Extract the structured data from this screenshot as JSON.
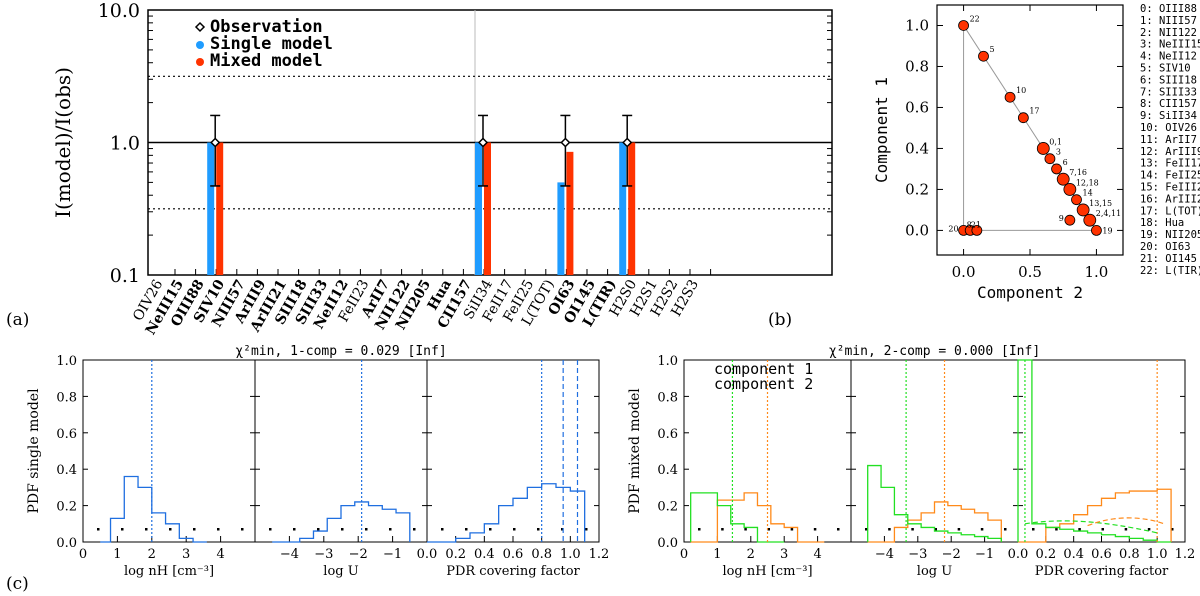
{
  "panel_labels": [
    "(a)",
    "(b)",
    "(c)"
  ],
  "chart_data": [
    {
      "id": "a",
      "type": "bar",
      "ylabel": "I(model)/I(obs)",
      "y_scale": "log",
      "ylim": [
        0.1,
        10.0
      ],
      "yticks": [
        "0.1",
        "1.0",
        "10.0"
      ],
      "categories": [
        "OIV26",
        "NeIII15",
        "OIII88",
        "SIV10",
        "NIII57",
        "ArIII9",
        "ArIII21",
        "SIII18",
        "SIII33",
        "NeII12",
        "FeII23",
        "ArII7",
        "NII122",
        "NII205",
        "Hua",
        "CII157",
        "SiII34",
        "FeII17",
        "FeII25",
        "L(TOT)",
        "OI63",
        "OI145",
        "L(TIR)",
        "H2S0",
        "H2S1",
        "H2S2",
        "H2S3"
      ],
      "bold_categories": [
        "NeIII15",
        "OIII88",
        "SIV10",
        "NIII57",
        "ArIII9",
        "ArIII21",
        "SIII18",
        "SIII33",
        "NeII12",
        "ArII7",
        "NII122",
        "NII205",
        "Hua",
        "CII157",
        "OI63",
        "OI145",
        "L(TIR)"
      ],
      "series": [
        {
          "name": "Observation",
          "type": "point",
          "values": {
            "OIII88": 1.0,
            "CII157": 1.0,
            "L(TOT)": 1.0,
            "L(TIR)": 1.0
          },
          "error_low": 0.47,
          "error_high": 1.6
        },
        {
          "name": "Single model",
          "color": "#1f9cff",
          "values": {
            "OIII88": 1.0,
            "CII157": 1.0,
            "L(TOT)": 0.5,
            "L(TIR)": 1.0
          }
        },
        {
          "name": "Mixed model",
          "color": "#ff3300",
          "values": {
            "OIII88": 1.0,
            "CII157": 1.0,
            "L(TOT)": 0.85,
            "L(TIR)": 1.0
          }
        }
      ],
      "reference_lines": [
        1.0,
        3.16,
        0.316
      ],
      "legend_placement": "top-left"
    },
    {
      "id": "b",
      "type": "scatter",
      "xlabel": "Component 2",
      "ylabel": "Component 1",
      "xlim": [
        -0.2,
        1.2
      ],
      "ylim": [
        -0.12,
        1.1
      ],
      "xticks": [
        "0.0",
        "0.5",
        "1.0"
      ],
      "yticks": [
        "0.0",
        "0.2",
        "0.4",
        "0.6",
        "0.8",
        "1.0"
      ],
      "points": [
        {
          "label": "22",
          "x": 0.0,
          "y": 1.0
        },
        {
          "label": "5",
          "x": 0.15,
          "y": 0.85
        },
        {
          "label": "10",
          "x": 0.35,
          "y": 0.65
        },
        {
          "label": "17",
          "x": 0.45,
          "y": 0.55
        },
        {
          "label": "0,1",
          "x": 0.6,
          "y": 0.4
        },
        {
          "label": "3",
          "x": 0.65,
          "y": 0.35
        },
        {
          "label": "6",
          "x": 0.7,
          "y": 0.3
        },
        {
          "label": "7,16",
          "x": 0.75,
          "y": 0.25
        },
        {
          "label": "12,18",
          "x": 0.8,
          "y": 0.2
        },
        {
          "label": "14",
          "x": 0.85,
          "y": 0.15
        },
        {
          "label": "13,15",
          "x": 0.9,
          "y": 0.1
        },
        {
          "label": "2,4,11",
          "x": 0.95,
          "y": 0.05
        },
        {
          "label": "9",
          "x": 0.8,
          "y": 0.05
        },
        {
          "label": "19",
          "x": 1.0,
          "y": 0.0
        },
        {
          "label": "20",
          "x": 0.0,
          "y": 0.0
        },
        {
          "label": "8",
          "x": 0.05,
          "y": 0.0
        },
        {
          "label": "21",
          "x": 0.1,
          "y": 0.0
        }
      ],
      "legend_entries": [
        "0: OIII88",
        "1: NIII57",
        "2: NII122",
        "3: NeIII15",
        "4: NeII12",
        "5: SIV10",
        "6: SIII18",
        "7: SIII33",
        "8: CII157",
        "9: SiII34",
        "10: OIV26",
        "11:   ArII7",
        "12: ArIII9",
        "13: FeII17",
        "14: FeII25",
        "15: FeIII23",
        "16: ArIII21",
        "17: L(TOT)",
        "18:   Hua",
        "19: NII205",
        "20: OI63",
        "21: OI145",
        "22: L(TIR)"
      ]
    },
    {
      "id": "c",
      "type": "area",
      "group_titles": [
        "χ²min, 1-comp = 0.029 [Inf]",
        "χ²min, 2-comp = 0.000 [Inf]"
      ],
      "ylabels": [
        "PDF single model",
        "PDF mixed model"
      ],
      "ylim": [
        0,
        1.0
      ],
      "yticks": [
        "0.0",
        "0.2",
        "0.4",
        "0.6",
        "0.8",
        "1.0"
      ],
      "panels": [
        {
          "xlabel": "log nH [cm⁻³]",
          "xlim": [
            0,
            5
          ],
          "xticks": [
            "0",
            "1",
            "2",
            "3",
            "4"
          ]
        },
        {
          "xlabel": "log U",
          "xlim": [
            -5,
            0
          ],
          "xticks": [
            "−4",
            "−3",
            "−2",
            "−1"
          ]
        },
        {
          "xlabel": "PDR covering factor",
          "xlim": [
            0,
            1.2
          ],
          "xticks": [
            "0.0",
            "0.2",
            "0.4",
            "0.6",
            "0.8",
            "1.0",
            "1.2"
          ]
        }
      ],
      "series_labels": [
        "component 1",
        "component 2"
      ],
      "colors": {
        "single": "#1f6fe0",
        "component1": "#ff8a1a",
        "component2": "#22e022"
      },
      "single": {
        "nh": {
          "edges": [
            0.5,
            0.8,
            1.2,
            1.6,
            2.0,
            2.4,
            2.8,
            3.2,
            3.6
          ],
          "values": [
            0.0,
            0.13,
            0.36,
            0.3,
            0.16,
            0.1,
            0.02,
            0.0
          ],
          "marker": 2.0
        },
        "u": {
          "edges": [
            -4.5,
            -4.1,
            -3.7,
            -3.3,
            -2.9,
            -2.5,
            -2.1,
            -1.7,
            -1.3,
            -0.9,
            -0.5
          ],
          "values": [
            0.0,
            0.0,
            0.02,
            0.06,
            0.13,
            0.2,
            0.22,
            0.2,
            0.18,
            0.16
          ],
          "marker": -1.9
        },
        "pdr": {
          "edges": [
            0.0,
            0.1,
            0.2,
            0.3,
            0.4,
            0.5,
            0.6,
            0.7,
            0.8,
            0.9,
            1.0,
            1.1
          ],
          "values": [
            0.0,
            0.0,
            0.02,
            0.05,
            0.1,
            0.2,
            0.24,
            0.3,
            0.32,
            0.3,
            0.28
          ],
          "markers": [
            0.8,
            0.95,
            1.05
          ]
        }
      },
      "mixed": {
        "nh_c1": {
          "edges": [
            0.2,
            0.6,
            1.0,
            1.4,
            1.8,
            2.2,
            2.6,
            3.0,
            3.4,
            3.8,
            4.2
          ],
          "values": [
            0.0,
            0.0,
            0.23,
            0.23,
            0.27,
            0.2,
            0.1,
            0.08,
            0.0,
            0.0
          ],
          "marker": 2.5
        },
        "nh_c2": {
          "edges": [
            0.2,
            0.6,
            1.0,
            1.4,
            1.8,
            2.2,
            2.6,
            3.0
          ],
          "values": [
            0.27,
            0.27,
            0.2,
            0.1,
            0.08,
            0.0,
            0.0
          ],
          "marker": 1.45
        },
        "u_c1": {
          "edges": [
            -4.5,
            -4.1,
            -3.7,
            -3.3,
            -2.9,
            -2.5,
            -2.1,
            -1.7,
            -1.3,
            -0.9,
            -0.5
          ],
          "values": [
            0.0,
            0.0,
            0.08,
            0.12,
            0.16,
            0.22,
            0.2,
            0.18,
            0.16,
            0.12
          ],
          "marker": -2.2
        },
        "u_c2": {
          "edges": [
            -4.5,
            -4.1,
            -3.7,
            -3.3,
            -2.9,
            -2.5,
            -2.1,
            -1.7,
            -1.3,
            -0.9,
            -0.5
          ],
          "values": [
            0.42,
            0.3,
            0.15,
            0.1,
            0.08,
            0.06,
            0.05,
            0.04,
            0.03,
            0.02
          ],
          "marker": -3.35
        },
        "pdr_c1": {
          "edges": [
            0.0,
            0.1,
            0.2,
            0.3,
            0.4,
            0.5,
            0.6,
            0.7,
            0.8,
            0.9,
            1.0,
            1.1
          ],
          "values": [
            0.0,
            0.0,
            0.08,
            0.1,
            0.15,
            0.2,
            0.24,
            0.27,
            0.28,
            0.28,
            0.29
          ],
          "marker": 1.0
        },
        "pdr_c2": {
          "edges": [
            0.0,
            0.1,
            0.2,
            0.3,
            0.4,
            0.5,
            0.6,
            0.7,
            0.8,
            0.9,
            1.0,
            1.1
          ],
          "values": [
            1.0,
            0.1,
            0.08,
            0.07,
            0.06,
            0.05,
            0.04,
            0.03,
            0.02,
            0.01,
            0.0
          ],
          "marker": 0.05
        }
      }
    }
  ]
}
